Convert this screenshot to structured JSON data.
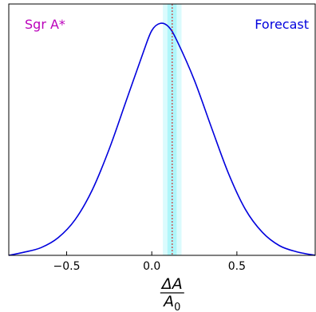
{
  "chart_data": {
    "type": "line",
    "title": "",
    "xlabel": {
      "numerator": "ΔA",
      "denominator": "A",
      "denominator_subscript": "0"
    },
    "ylabel": "",
    "xlim": [
      -0.84,
      0.96
    ],
    "ylim": [
      0,
      1.04
    ],
    "xticks": [
      {
        "value": -0.5,
        "label": "−0.5"
      },
      {
        "value": 0.0,
        "label": "0.0"
      },
      {
        "value": 0.5,
        "label": "0.5"
      }
    ],
    "yticks": [],
    "grid": false,
    "series": [
      {
        "color": "#0000dd",
        "x": [
          -0.84,
          -0.75,
          -0.65,
          -0.55,
          -0.45,
          -0.35,
          -0.25,
          -0.15,
          -0.05,
          0.0,
          0.05,
          0.1,
          0.15,
          0.25,
          0.35,
          0.45,
          0.55,
          0.65,
          0.75,
          0.85,
          0.96
        ],
        "y": [
          0.0,
          0.013,
          0.032,
          0.073,
          0.148,
          0.27,
          0.44,
          0.64,
          0.84,
          0.93,
          0.96,
          0.945,
          0.885,
          0.725,
          0.53,
          0.34,
          0.19,
          0.095,
          0.04,
          0.015,
          0.0
        ]
      }
    ],
    "band": {
      "x_min": 0.065,
      "x_max": 0.175,
      "inner_x_min": 0.092,
      "inner_x_max": 0.146,
      "color": "#00e5ee"
    },
    "vline": {
      "x": 0.12,
      "color": "#cc3333",
      "style": "dotted"
    },
    "annotations": [
      {
        "text": "Sgr A*",
        "color": "#bb00bb",
        "position": "top-left"
      },
      {
        "text": "Forecast",
        "color": "#0000dd",
        "position": "top-right"
      }
    ]
  }
}
